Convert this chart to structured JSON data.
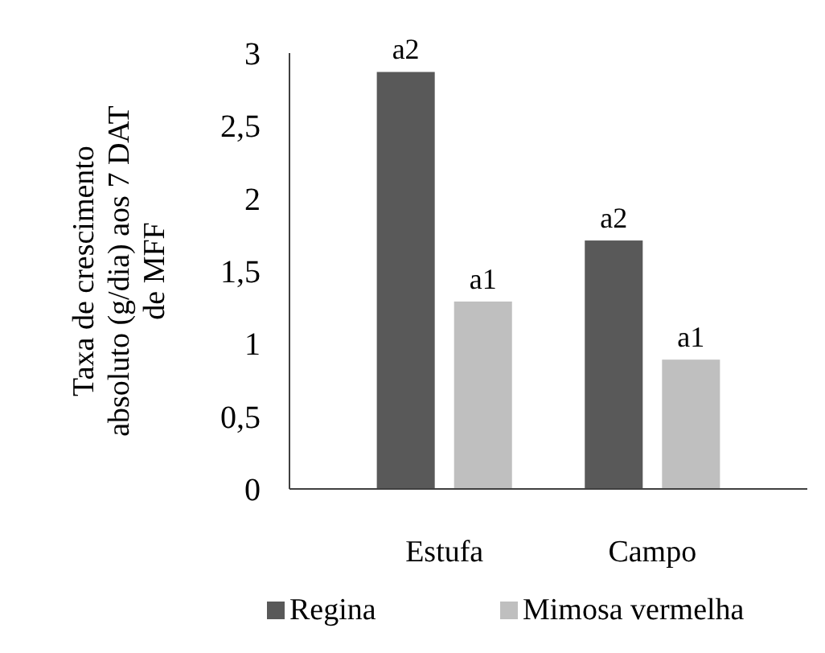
{
  "chart_data": {
    "type": "bar",
    "ylabel": "Taxa de crescimento absoluto (g/dia) aos 7 DAT de MFF",
    "categories": [
      "Estufa",
      "Campo"
    ],
    "series": [
      {
        "name": "Regina",
        "color": "#595959",
        "values": [
          2.87,
          1.71
        ],
        "value_labels": [
          "a2",
          "a2"
        ]
      },
      {
        "name": "Mimosa vermelha",
        "color": "#bfbfbf",
        "values": [
          1.29,
          0.89
        ],
        "value_labels": [
          "a1",
          "a1"
        ]
      }
    ],
    "ylim": [
      0,
      3
    ],
    "yticks": [
      0,
      {
        "value": 0.5,
        "label": "0,5"
      },
      1,
      {
        "value": 1.5,
        "label": "1,5"
      },
      2,
      {
        "value": 2.5,
        "label": "2,5"
      },
      3
    ],
    "legend": "bottom",
    "grid": false
  }
}
